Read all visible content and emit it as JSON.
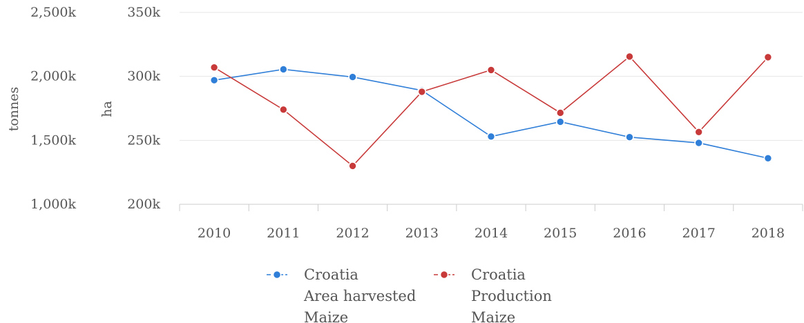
{
  "chart_data": {
    "type": "line",
    "categories": [
      "2010",
      "2011",
      "2012",
      "2013",
      "2014",
      "2015",
      "2016",
      "2017",
      "2018"
    ],
    "axes": {
      "left_outer": {
        "label": "tonnes",
        "ticks": [
          "1,000k",
          "1,500k",
          "2,000k",
          "2,500k"
        ],
        "range": [
          1000000,
          2500000
        ]
      },
      "left_inner": {
        "label": "ha",
        "ticks": [
          "200k",
          "250k",
          "300k",
          "350k"
        ],
        "range": [
          200000,
          350000
        ]
      }
    },
    "series": [
      {
        "name_lines": [
          "Croatia",
          "Area harvested",
          "Maize"
        ],
        "axis": "ha",
        "color": "#2f7ed8",
        "values": [
          297000,
          305500,
          299500,
          289000,
          253000,
          264500,
          252500,
          248000,
          236000
        ]
      },
      {
        "name_lines": [
          "Croatia",
          "Production",
          "Maize"
        ],
        "axis": "tonnes",
        "color": "#c83a3a",
        "values": [
          2070000,
          1740000,
          1300000,
          1880000,
          2050000,
          1715000,
          2155000,
          1565000,
          2150000
        ]
      }
    ],
    "grid": true,
    "legend_position": "bottom-center"
  }
}
